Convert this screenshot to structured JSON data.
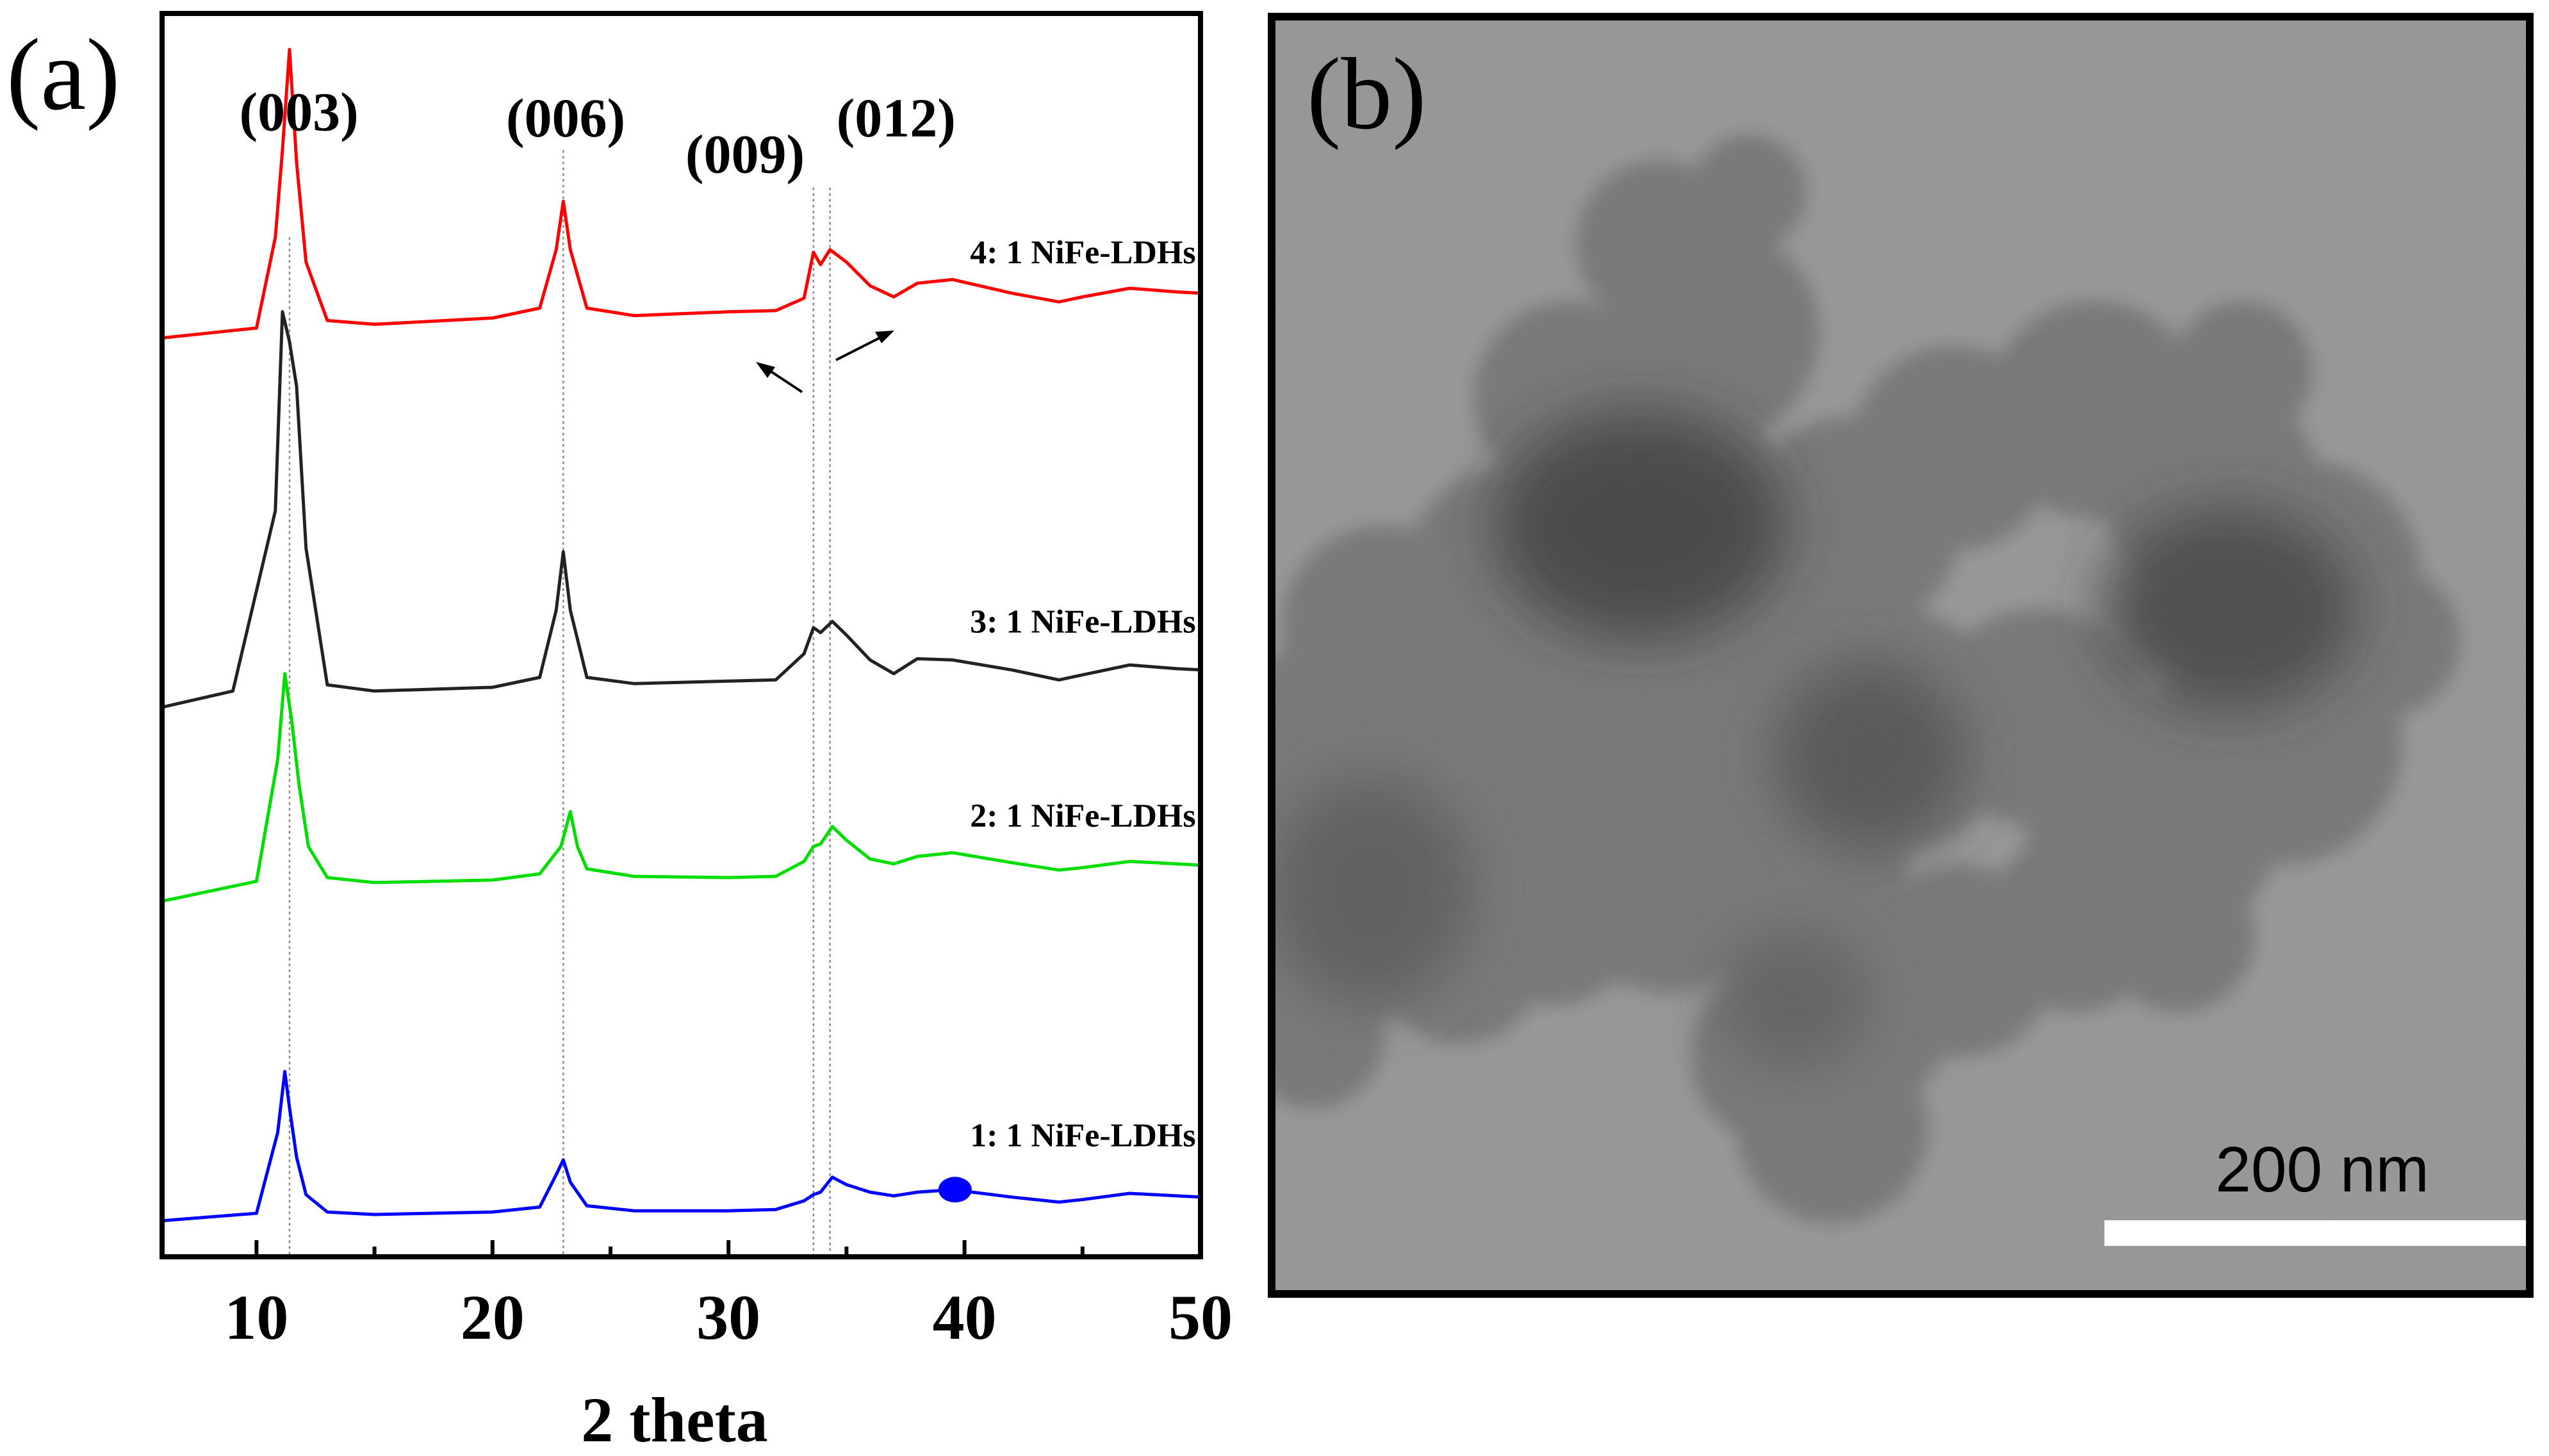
{
  "panel_labels": {
    "a": "(a)",
    "b": "(b)"
  },
  "chart_data": {
    "type": "line",
    "title": "",
    "xlabel": "2 theta",
    "ylabel": "",
    "xlim": [
      6,
      50
    ],
    "ylim": [
      0,
      100
    ],
    "xticks": [
      10,
      20,
      30,
      40,
      50
    ],
    "grid": false,
    "peak_labels": [
      {
        "text": "(003)",
        "x": 11.4,
        "ref_x": [
          11.4
        ]
      },
      {
        "text": "(006)",
        "x": 23.0,
        "ref_x": [
          23.0
        ]
      },
      {
        "text": "(009)",
        "x": 33.6,
        "ref_x": [
          33.6
        ]
      },
      {
        "text": "(012)",
        "x": 34.3,
        "ref_x": [
          34.3
        ]
      }
    ],
    "series": [
      {
        "name": "4: 1 NiFe-LDHs",
        "color": "#ff0000",
        "baseline": 73.9,
        "x": [
          6,
          10,
          10.8,
          11.1,
          11.4,
          11.7,
          12.1,
          13,
          15,
          20,
          22,
          22.7,
          23.0,
          23.3,
          24,
          26,
          30,
          32,
          33.2,
          33.6,
          33.9,
          34.3,
          35,
          36,
          37,
          38,
          39.5,
          42,
          44,
          45,
          47,
          49,
          50
        ],
        "y": [
          73.9,
          74.7,
          82,
          89,
          97.1,
          88,
          80,
          75.3,
          75.0,
          75.5,
          76.3,
          81,
          84.9,
          81,
          76.3,
          75.7,
          76.0,
          76.1,
          77.1,
          80.8,
          79.8,
          81.0,
          80.0,
          78.1,
          77.2,
          78.3,
          78.6,
          77.5,
          76.8,
          77.2,
          77.9,
          77.6,
          77.5
        ]
      },
      {
        "name": "3: 1 NiFe-LDHs",
        "color": "#222222",
        "baseline": 44.2,
        "x": [
          6,
          9,
          10.8,
          11.1,
          11.4,
          11.7,
          12.1,
          13,
          15,
          20,
          22,
          22.7,
          23.0,
          23.3,
          24,
          26,
          30,
          32,
          33.2,
          33.6,
          33.9,
          34.4,
          35,
          36,
          37,
          38,
          39.5,
          42,
          44,
          45,
          47,
          49,
          50
        ],
        "y": [
          44.2,
          45.5,
          60,
          76,
          73.6,
          70,
          57,
          46.0,
          45.5,
          45.8,
          46.6,
          52,
          56.7,
          52,
          46.6,
          46.1,
          46.3,
          46.4,
          48.5,
          50.6,
          50.2,
          51.1,
          50.0,
          48.0,
          46.9,
          48.1,
          48.0,
          47.2,
          46.4,
          46.8,
          47.6,
          47.3,
          47.2
        ]
      },
      {
        "name": "2: 1 NiFe-LDHs",
        "color": "#00dd00",
        "baseline": 28.6,
        "x": [
          6,
          10,
          10.9,
          11.2,
          11.5,
          11.8,
          12.2,
          13,
          15,
          20,
          22,
          22.9,
          23.3,
          23.6,
          24,
          26,
          30,
          32,
          33.2,
          33.6,
          33.9,
          34.4,
          35,
          36,
          37,
          38,
          39.5,
          42,
          44,
          45,
          47,
          49,
          50
        ],
        "y": [
          28.6,
          30.2,
          40,
          46.9,
          43,
          38,
          33,
          30.5,
          30.1,
          30.3,
          30.8,
          33,
          35.8,
          33,
          31.2,
          30.6,
          30.5,
          30.6,
          31.8,
          33.0,
          33.2,
          34.6,
          33.5,
          32.0,
          31.6,
          32.2,
          32.5,
          31.7,
          31.1,
          31.3,
          31.8,
          31.6,
          31.5
        ]
      },
      {
        "name": "1: 1 NiFe-LDHs",
        "color": "#0000ff",
        "baseline": 2.9,
        "x": [
          6,
          10,
          10.9,
          11.2,
          11.4,
          11.7,
          12.1,
          13,
          15,
          20,
          22,
          22.7,
          23.0,
          23.3,
          24,
          26,
          30,
          32,
          33.2,
          33.6,
          33.9,
          34.4,
          35,
          36,
          37,
          38,
          39.5,
          42,
          44,
          45,
          47,
          49,
          50
        ],
        "y": [
          2.9,
          3.5,
          10,
          14.9,
          12,
          8,
          5,
          3.6,
          3.4,
          3.6,
          4.0,
          6.6,
          7.8,
          6.0,
          4.1,
          3.7,
          3.7,
          3.8,
          4.5,
          5.0,
          5.2,
          6.4,
          5.8,
          5.2,
          4.9,
          5.2,
          5.4,
          4.8,
          4.4,
          4.6,
          5.1,
          4.9,
          4.8
        ]
      }
    ],
    "markers": [
      {
        "x": 39.6,
        "y": 5.4,
        "color": "#0000ff",
        "shape": "circle"
      }
    ]
  },
  "micrograph": {
    "scale_bar_label": "200 nm"
  }
}
